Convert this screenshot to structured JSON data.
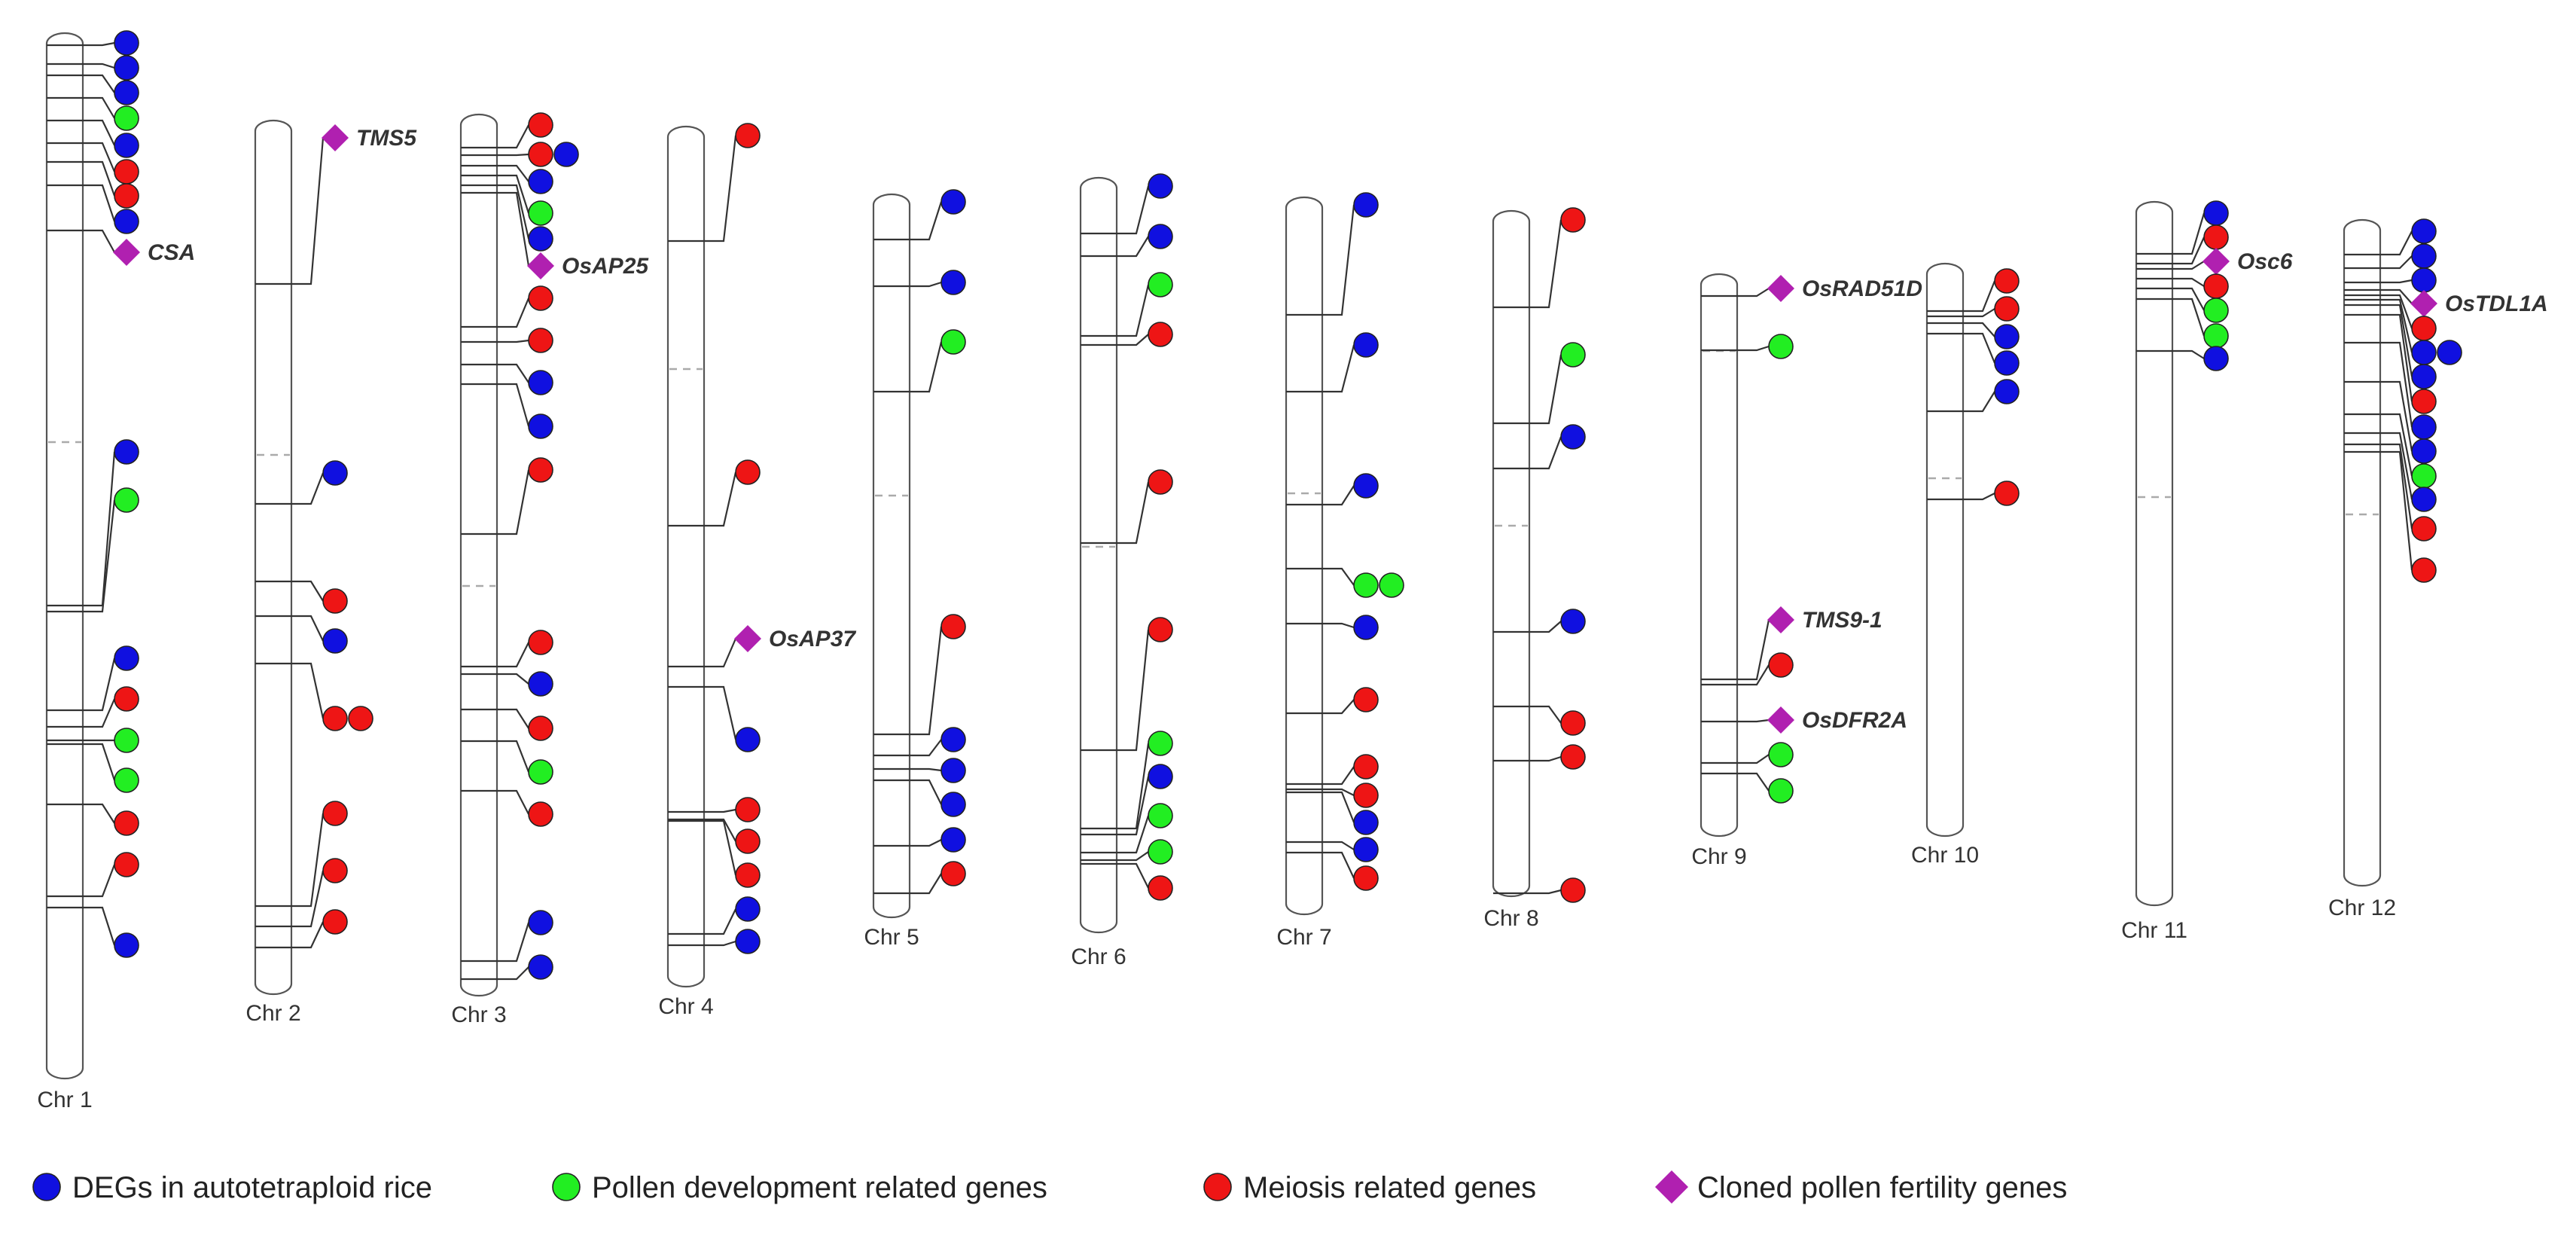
{
  "colors": {
    "deg": "#1010e0",
    "pollen": "#22ee22",
    "meiosis": "#ee1515",
    "cloned": "#b020b0"
  },
  "legend": [
    {
      "type": "deg",
      "shape": "circle",
      "label": "DEGs in autotetraploid rice"
    },
    {
      "type": "pollen",
      "shape": "circle",
      "label": "Pollen development related genes"
    },
    {
      "type": "meiosis",
      "shape": "circle",
      "label": "Meiosis related genes"
    },
    {
      "type": "cloned",
      "shape": "diamond",
      "label": "Cloned  pollen fertility genes"
    }
  ],
  "chromosomes": [
    {
      "label": "Chr 1",
      "markers": [
        [
          "deg"
        ],
        [
          "deg"
        ],
        [
          "deg"
        ],
        [
          "pollen"
        ],
        [
          "deg"
        ],
        [
          "meiosis"
        ],
        [
          "meiosis"
        ],
        [
          "deg"
        ],
        [
          "cloned",
          "CSA"
        ],
        [
          "deg"
        ],
        [
          "pollen"
        ],
        [
          "deg"
        ],
        [
          "meiosis"
        ],
        [
          "pollen"
        ],
        [
          "pollen"
        ],
        [
          "meiosis"
        ],
        [
          "meiosis"
        ],
        [
          "deg"
        ]
      ]
    },
    {
      "label": "Chr 2",
      "markers": [
        [
          "cloned",
          "TMS5"
        ],
        [
          "deg"
        ],
        [
          "meiosis"
        ],
        [
          "deg"
        ],
        [
          "meiosis",
          "meiosis"
        ],
        [
          "meiosis"
        ],
        [
          "meiosis"
        ],
        [
          "meiosis"
        ]
      ]
    },
    {
      "label": "Chr 3",
      "markers": [
        [
          "meiosis"
        ],
        [
          "meiosis",
          "deg"
        ],
        [
          "deg"
        ],
        [
          "pollen"
        ],
        [
          "deg"
        ],
        [
          "cloned",
          "OsAP25"
        ],
        [
          "meiosis"
        ],
        [
          "meiosis"
        ],
        [
          "deg"
        ],
        [
          "deg"
        ],
        [
          "meiosis"
        ],
        [
          "meiosis"
        ],
        [
          "deg"
        ],
        [
          "meiosis"
        ],
        [
          "pollen"
        ],
        [
          "meiosis"
        ],
        [
          "deg"
        ],
        [
          "deg"
        ]
      ]
    },
    {
      "label": "Chr 4",
      "markers": [
        [
          "meiosis"
        ],
        [
          "meiosis"
        ],
        [
          "cloned",
          "OsAP37"
        ],
        [
          "deg"
        ],
        [
          "meiosis"
        ],
        [
          "meiosis"
        ],
        [
          "meiosis"
        ],
        [
          "deg"
        ],
        [
          "deg"
        ]
      ]
    },
    {
      "label": "Chr 5",
      "markers": [
        [
          "deg"
        ],
        [
          "deg"
        ],
        [
          "pollen"
        ],
        [
          "meiosis"
        ],
        [
          "deg"
        ],
        [
          "deg"
        ],
        [
          "deg"
        ],
        [
          "deg"
        ],
        [
          "meiosis"
        ]
      ]
    },
    {
      "label": "Chr 6",
      "markers": [
        [
          "deg"
        ],
        [
          "deg"
        ],
        [
          "pollen"
        ],
        [
          "meiosis"
        ],
        [
          "meiosis"
        ],
        [
          "meiosis"
        ],
        [
          "pollen"
        ],
        [
          "deg"
        ],
        [
          "pollen"
        ],
        [
          "pollen"
        ],
        [
          "meiosis"
        ]
      ]
    },
    {
      "label": "Chr 7",
      "markers": [
        [
          "deg"
        ],
        [
          "deg"
        ],
        [
          "deg"
        ],
        [
          "pollen",
          "pollen"
        ],
        [
          "deg"
        ],
        [
          "meiosis"
        ],
        [
          "meiosis"
        ],
        [
          "meiosis"
        ],
        [
          "deg"
        ],
        [
          "deg"
        ],
        [
          "meiosis"
        ]
      ]
    },
    {
      "label": "Chr 8",
      "markers": [
        [
          "meiosis"
        ],
        [
          "pollen"
        ],
        [
          "deg"
        ],
        [
          "deg"
        ],
        [
          "meiosis"
        ],
        [
          "meiosis"
        ],
        [
          "meiosis"
        ]
      ]
    },
    {
      "label": "Chr 9",
      "markers": [
        [
          "cloned",
          "OsRAD51D"
        ],
        [
          "pollen"
        ],
        [
          "cloned",
          "TMS9-1"
        ],
        [
          "meiosis"
        ],
        [
          "cloned",
          "OsDFR2A"
        ],
        [
          "pollen"
        ],
        [
          "pollen"
        ]
      ]
    },
    {
      "label": "Chr 10",
      "markers": [
        [
          "meiosis"
        ],
        [
          "meiosis"
        ],
        [
          "deg"
        ],
        [
          "deg"
        ],
        [
          "deg"
        ],
        [
          "meiosis"
        ]
      ]
    },
    {
      "label": "Chr 11",
      "markers": [
        [
          "deg"
        ],
        [
          "meiosis"
        ],
        [
          "cloned",
          "Osc6"
        ],
        [
          "meiosis"
        ],
        [
          "pollen"
        ],
        [
          "pollen"
        ],
        [
          "deg"
        ]
      ]
    },
    {
      "label": "Chr 12",
      "markers": [
        [
          "deg"
        ],
        [
          "deg"
        ],
        [
          "deg"
        ],
        [
          "cloned",
          "OsTDL1A"
        ],
        [
          "meiosis"
        ],
        [
          "deg",
          "deg"
        ],
        [
          "deg"
        ],
        [
          "meiosis"
        ],
        [
          "deg"
        ],
        [
          "deg"
        ],
        [
          "pollen"
        ],
        [
          "deg"
        ],
        [
          "meiosis"
        ],
        [
          "meiosis"
        ]
      ]
    }
  ]
}
